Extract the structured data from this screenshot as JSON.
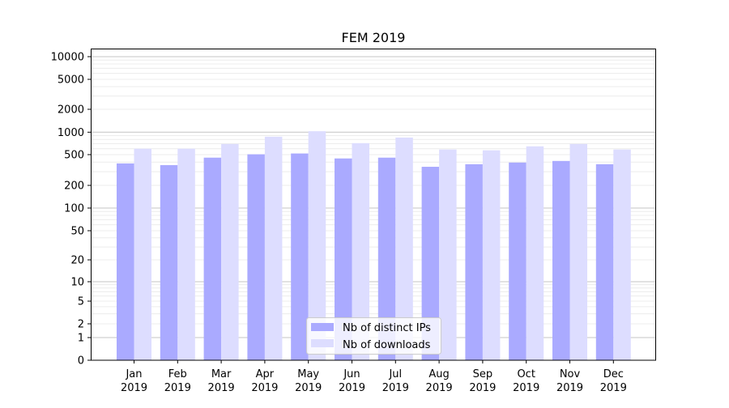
{
  "chart_data": {
    "type": "bar",
    "title": "FEM 2019",
    "xlabel": "",
    "ylabel": "",
    "yscale": "symlog",
    "ylim": [
      0,
      12000
    ],
    "grid": true,
    "legend_position": "bottom-center",
    "categories": [
      "Jan\n2019",
      "Feb\n2019",
      "Mar\n2019",
      "Apr\n2019",
      "May\n2019",
      "Jun\n2019",
      "Jul\n2019",
      "Aug\n2019",
      "Sep\n2019",
      "Oct\n2019",
      "Nov\n2019",
      "Dec\n2019"
    ],
    "yticks": [
      0,
      1,
      2,
      5,
      10,
      20,
      50,
      100,
      200,
      500,
      1000,
      2000,
      5000,
      10000
    ],
    "series": [
      {
        "name": "Nb of distinct IPs",
        "color": "#aaaaff",
        "values": [
          385,
          366,
          457,
          505,
          518,
          446,
          457,
          348,
          376,
          395,
          414,
          376
        ]
      },
      {
        "name": "Nb of downloads",
        "color": "#ddddff",
        "values": [
          600,
          600,
          695,
          870,
          1030,
          713,
          848,
          585,
          571,
          646,
          695,
          585
        ]
      }
    ]
  }
}
